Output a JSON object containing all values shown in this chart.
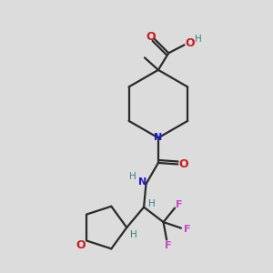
{
  "bg_color": "#dcdcdc",
  "bond_color": "#2a2a2a",
  "N_color": "#1a1acc",
  "O_color": "#cc1a1a",
  "F_color": "#cc44cc",
  "H_color": "#3a8080",
  "figsize": [
    3.0,
    3.0
  ],
  "dpi": 100,
  "xlim": [
    0,
    10
  ],
  "ylim": [
    0,
    10
  ],
  "lw": 1.6
}
